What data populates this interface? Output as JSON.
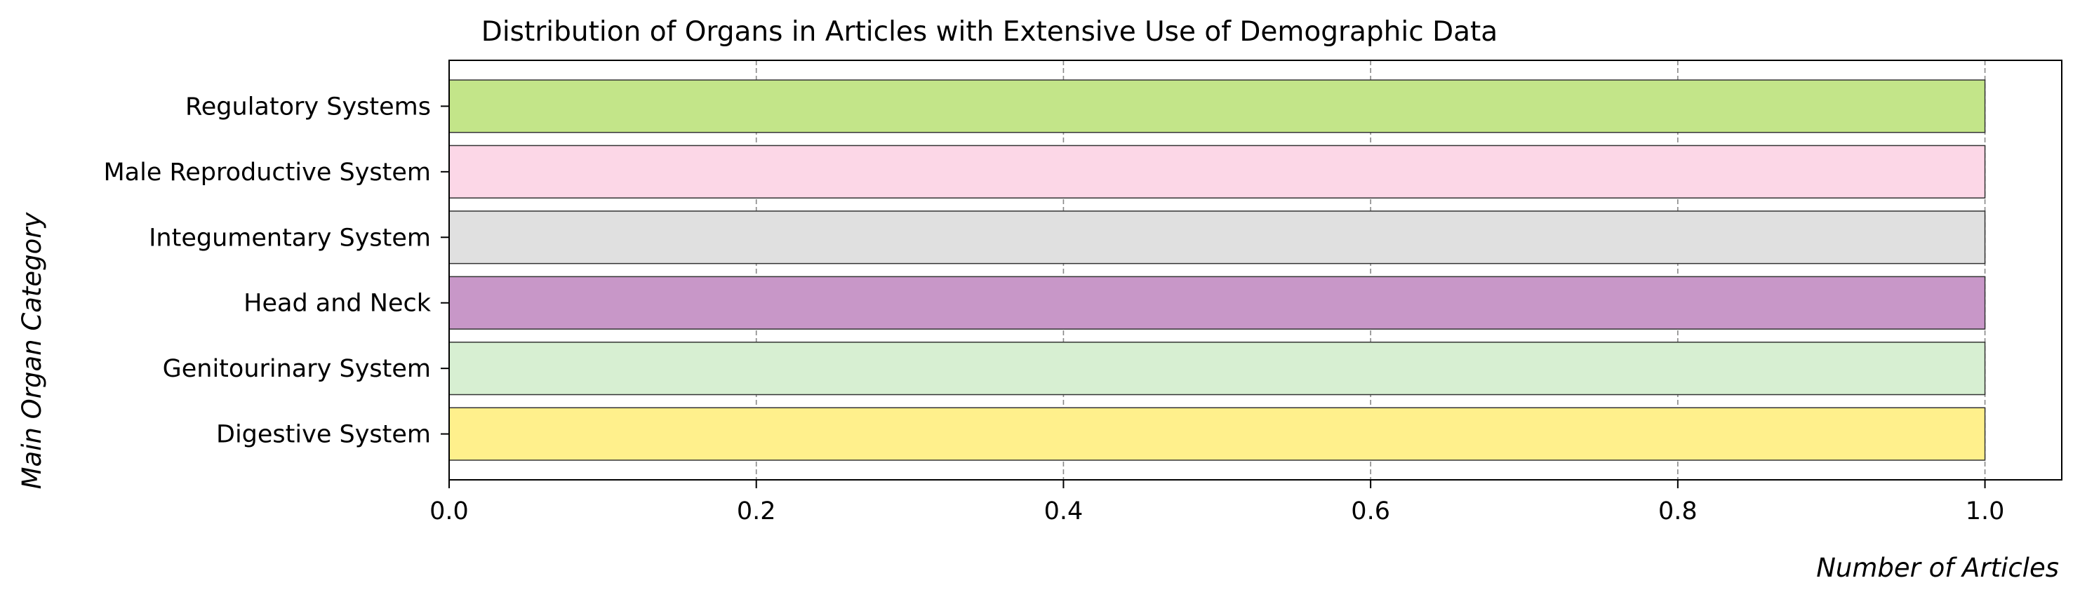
{
  "chart_data": {
    "type": "bar",
    "orientation": "horizontal",
    "title": "Distribution of Organs in Articles with Extensive Use of Demographic Data",
    "xlabel": "Number of Articles",
    "ylabel": "Main Organ Category",
    "categories": [
      "Digestive System",
      "Genitourinary System",
      "Head and Neck",
      "Integumentary System",
      "Male Reproductive System",
      "Regulatory Systems"
    ],
    "values": [
      1,
      1,
      1,
      1,
      1,
      1
    ],
    "colors": [
      "#fff08c",
      "#d7efd2",
      "#c897c8",
      "#e0e0e0",
      "#fcd7e7",
      "#c3e589"
    ],
    "xlim": [
      0,
      1.05
    ],
    "xticks": [
      0.0,
      0.2,
      0.4,
      0.6,
      0.8,
      1.0
    ],
    "xtick_labels": [
      "0.0",
      "0.2",
      "0.4",
      "0.6",
      "0.8",
      "1.0"
    ],
    "grid": "x-dashed",
    "legend": "none"
  }
}
